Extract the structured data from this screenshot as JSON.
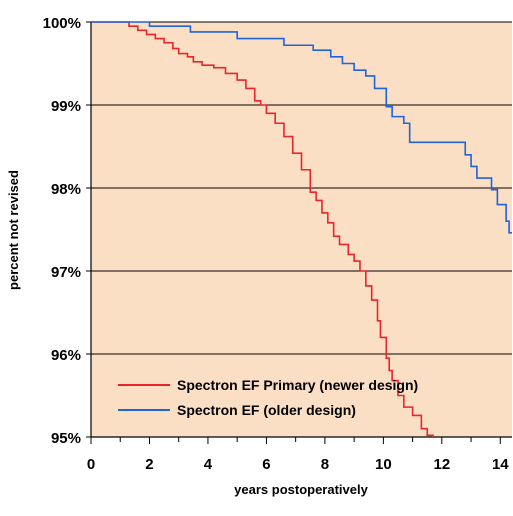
{
  "chart_data": {
    "type": "line",
    "xlabel": "years postoperatively",
    "ylabel": "percent not revised",
    "xlim": [
      0,
      14.4
    ],
    "ylim": [
      95,
      100
    ],
    "x_ticks": [
      0,
      2,
      4,
      6,
      8,
      10,
      12,
      14
    ],
    "x_tick_labels": [
      "0",
      "2",
      "4",
      "6",
      "8",
      "10",
      "12",
      "14"
    ],
    "y_ticks": [
      95,
      96,
      97,
      98,
      99,
      100
    ],
    "y_tick_labels": [
      "95%",
      "96%",
      "97%",
      "98%",
      "99%",
      "100%"
    ],
    "grid": "horizontal",
    "plot_background": "#fbdfc4",
    "legend_position": "bottom-left",
    "series": [
      {
        "name": "Spectron EF Primary (newer design)",
        "color": "#e8262c",
        "style": "step",
        "points": [
          [
            0,
            100
          ],
          [
            1.0,
            100
          ],
          [
            1.3,
            99.95
          ],
          [
            1.6,
            99.9
          ],
          [
            1.9,
            99.85
          ],
          [
            2.2,
            99.8
          ],
          [
            2.5,
            99.75
          ],
          [
            2.8,
            99.68
          ],
          [
            3.0,
            99.62
          ],
          [
            3.3,
            99.58
          ],
          [
            3.5,
            99.52
          ],
          [
            3.8,
            99.48
          ],
          [
            4.2,
            99.45
          ],
          [
            4.6,
            99.38
          ],
          [
            5.0,
            99.3
          ],
          [
            5.3,
            99.2
          ],
          [
            5.6,
            99.05
          ],
          [
            5.8,
            99.0
          ],
          [
            6.0,
            98.9
          ],
          [
            6.3,
            98.78
          ],
          [
            6.6,
            98.62
          ],
          [
            6.9,
            98.42
          ],
          [
            7.2,
            98.22
          ],
          [
            7.5,
            97.95
          ],
          [
            7.7,
            97.85
          ],
          [
            7.9,
            97.7
          ],
          [
            8.1,
            97.58
          ],
          [
            8.3,
            97.42
          ],
          [
            8.5,
            97.32
          ],
          [
            8.8,
            97.2
          ],
          [
            9.0,
            97.12
          ],
          [
            9.2,
            97.0
          ],
          [
            9.4,
            96.82
          ],
          [
            9.6,
            96.65
          ],
          [
            9.8,
            96.4
          ],
          [
            9.9,
            96.2
          ],
          [
            10.1,
            95.95
          ],
          [
            10.2,
            95.8
          ],
          [
            10.3,
            95.68
          ],
          [
            10.5,
            95.5
          ],
          [
            10.7,
            95.36
          ],
          [
            11.0,
            95.26
          ],
          [
            11.3,
            95.1
          ],
          [
            11.5,
            95.02
          ],
          [
            11.7,
            94.96
          ]
        ]
      },
      {
        "name": "Spectron EF (older design)",
        "color": "#2064d8",
        "style": "step",
        "points": [
          [
            0,
            100
          ],
          [
            2.0,
            100
          ],
          [
            2.0,
            99.95
          ],
          [
            3.4,
            99.95
          ],
          [
            3.4,
            99.88
          ],
          [
            5.0,
            99.88
          ],
          [
            5.0,
            99.8
          ],
          [
            6.6,
            99.8
          ],
          [
            6.6,
            99.72
          ],
          [
            7.6,
            99.72
          ],
          [
            7.6,
            99.66
          ],
          [
            8.2,
            99.66
          ],
          [
            8.2,
            99.58
          ],
          [
            8.6,
            99.58
          ],
          [
            8.6,
            99.5
          ],
          [
            9.0,
            99.5
          ],
          [
            9.0,
            99.42
          ],
          [
            9.4,
            99.42
          ],
          [
            9.4,
            99.35
          ],
          [
            9.7,
            99.35
          ],
          [
            9.7,
            99.2
          ],
          [
            10.1,
            99.2
          ],
          [
            10.1,
            98.98
          ],
          [
            10.3,
            98.98
          ],
          [
            10.3,
            98.86
          ],
          [
            10.7,
            98.86
          ],
          [
            10.7,
            98.78
          ],
          [
            10.9,
            98.78
          ],
          [
            10.9,
            98.55
          ],
          [
            11.6,
            98.55
          ],
          [
            11.6,
            98.55
          ],
          [
            12.8,
            98.55
          ],
          [
            12.8,
            98.4
          ],
          [
            13.0,
            98.4
          ],
          [
            13.0,
            98.26
          ],
          [
            13.2,
            98.26
          ],
          [
            13.2,
            98.12
          ],
          [
            13.7,
            98.12
          ],
          [
            13.7,
            97.98
          ],
          [
            13.9,
            97.98
          ],
          [
            13.9,
            97.8
          ],
          [
            14.2,
            97.8
          ],
          [
            14.2,
            97.6
          ],
          [
            14.3,
            97.6
          ],
          [
            14.3,
            97.46
          ],
          [
            14.4,
            97.46
          ]
        ]
      }
    ]
  }
}
